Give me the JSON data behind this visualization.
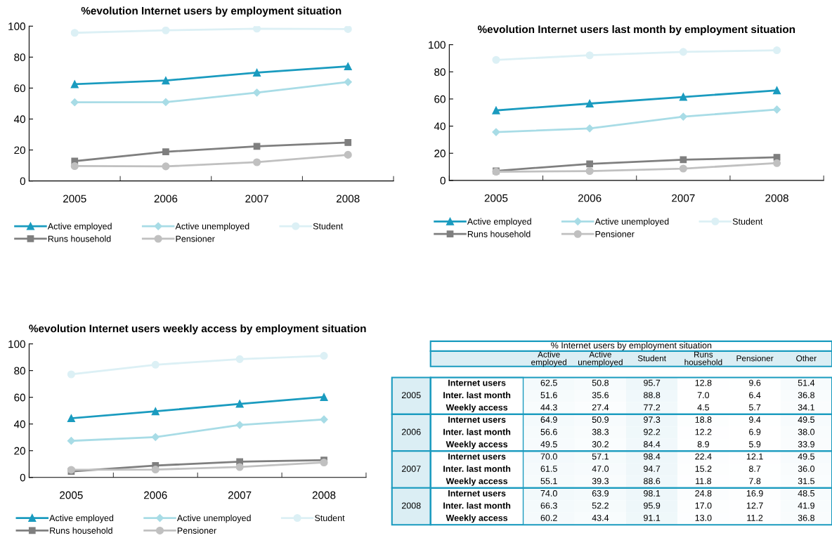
{
  "chart_data": [
    {
      "type": "line",
      "title": "%evolution Internet users by employment situation",
      "categories": [
        "2005",
        "2006",
        "2007",
        "2008"
      ],
      "ylim": [
        0,
        100
      ],
      "yticks": [
        0,
        20,
        40,
        60,
        80,
        100
      ],
      "legend": "bottom",
      "series": [
        {
          "name": "Active employed",
          "color": "#1a9bbf",
          "marker": "triangle",
          "values": [
            62.5,
            64.9,
            70.0,
            74.0
          ]
        },
        {
          "name": "Active unemployed",
          "color": "#a8dce6",
          "marker": "diamond",
          "values": [
            50.8,
            50.9,
            57.1,
            63.9
          ]
        },
        {
          "name": "Student",
          "color": "#dcf0f5",
          "marker": "circle",
          "values": [
            95.7,
            97.3,
            98.4,
            98.1
          ]
        },
        {
          "name": "Runs household",
          "color": "#7f7f7f",
          "marker": "square",
          "values": [
            12.8,
            18.8,
            22.4,
            24.8
          ]
        },
        {
          "name": "Pensioner",
          "color": "#c0c0c0",
          "marker": "circle",
          "values": [
            9.6,
            9.4,
            12.1,
            16.9
          ]
        }
      ]
    },
    {
      "type": "line",
      "title": "%evolution Internet users last month by employment situation",
      "categories": [
        "2005",
        "2006",
        "2007",
        "2008"
      ],
      "ylim": [
        0,
        100
      ],
      "yticks": [
        0,
        20,
        40,
        60,
        80,
        100
      ],
      "legend": "bottom",
      "series": [
        {
          "name": "Active employed",
          "color": "#1a9bbf",
          "marker": "triangle",
          "values": [
            51.6,
            56.6,
            61.5,
            66.3
          ]
        },
        {
          "name": "Active unemployed",
          "color": "#a8dce6",
          "marker": "diamond",
          "values": [
            35.6,
            38.3,
            47.0,
            52.2
          ]
        },
        {
          "name": "Student",
          "color": "#dcf0f5",
          "marker": "circle",
          "values": [
            88.8,
            92.2,
            94.7,
            95.9
          ]
        },
        {
          "name": "Runs household",
          "color": "#7f7f7f",
          "marker": "square",
          "values": [
            7.0,
            12.2,
            15.2,
            17.0
          ]
        },
        {
          "name": "Pensioner",
          "color": "#c0c0c0",
          "marker": "circle",
          "values": [
            6.4,
            6.9,
            8.7,
            12.7
          ]
        }
      ]
    },
    {
      "type": "line",
      "title": "%evolution Internet users weekly access by employment situation",
      "categories": [
        "2005",
        "2006",
        "2007",
        "2008"
      ],
      "ylim": [
        0,
        100
      ],
      "yticks": [
        0,
        20,
        40,
        60,
        80,
        100
      ],
      "legend": "bottom",
      "series": [
        {
          "name": "Active employed",
          "color": "#1a9bbf",
          "marker": "triangle",
          "values": [
            44.3,
            49.5,
            55.1,
            60.2
          ]
        },
        {
          "name": "Active unemployed",
          "color": "#a8dce6",
          "marker": "diamond",
          "values": [
            27.4,
            30.2,
            39.3,
            43.4
          ]
        },
        {
          "name": "Student",
          "color": "#dcf0f5",
          "marker": "circle",
          "values": [
            77.2,
            84.4,
            88.6,
            91.1
          ]
        },
        {
          "name": "Runs household",
          "color": "#7f7f7f",
          "marker": "square",
          "values": [
            4.5,
            8.9,
            11.8,
            13.0
          ]
        },
        {
          "name": "Pensioner",
          "color": "#c0c0c0",
          "marker": "circle",
          "values": [
            5.7,
            5.9,
            7.8,
            11.2
          ]
        }
      ]
    },
    {
      "type": "heatmap",
      "title": "% Internet users by employment situation",
      "data_labels": true,
      "categories": [
        "Active employed",
        "Active unemployed",
        "Student",
        "Runs household",
        "Pensioner",
        "Other"
      ],
      "y_categories": [
        "Internet users",
        "Inter. last month",
        "Weekly access",
        "Internet users",
        "Inter. last month",
        "Weekly access",
        "Internet users",
        "Inter. last month",
        "Weekly access",
        "Internet users",
        "Inter. last month",
        "Weekly access"
      ],
      "y2_categories": [
        null,
        "2005",
        null,
        null,
        "2006",
        null,
        null,
        "2007",
        null,
        null,
        "2008",
        null
      ],
      "cell_labels": [
        [
          "62.5",
          "50.8",
          "95.7",
          "12.8",
          "9.6",
          "51.4"
        ],
        [
          "51.6",
          "35.6",
          "88.8",
          "7.0",
          "6.4",
          "36.8"
        ],
        [
          "44.3",
          "27.4",
          "77.2",
          "4.5",
          "5.7",
          "34.1"
        ],
        [
          "64.9",
          "50.9",
          "97.3",
          "18.8",
          "9.4",
          "49.5"
        ],
        [
          "56.6",
          "38.3",
          "92.2",
          "12.2",
          "6.9",
          "38.0"
        ],
        [
          "49.5",
          "30.2",
          "84.4",
          "8.9",
          "5.9",
          "33.9"
        ],
        [
          "70.0",
          "57.1",
          "98.4",
          "22.4",
          "12.1",
          "49.5"
        ],
        [
          "61.5",
          "47.0",
          "94.7",
          "15.2",
          "8.7",
          "36.0"
        ],
        [
          "55.1",
          "39.3",
          "88.6",
          "11.8",
          "7.8",
          "31.5"
        ],
        [
          "74.0",
          "63.9",
          "98.1",
          "24.8",
          "16.9",
          "48.5"
        ],
        [
          "66.3",
          "52.2",
          "95.9",
          "17.0",
          "12.7",
          "41.9"
        ],
        [
          "60.2",
          "43.4",
          "91.1",
          "13.0",
          "11.2",
          "36.8"
        ]
      ],
      "cells": [
        [
          62.5,
          50.8,
          95.7,
          12.8,
          9.6,
          51.4
        ],
        [
          51.6,
          35.6,
          88.8,
          7.0,
          6.4,
          36.8
        ],
        [
          44.3,
          27.4,
          77.2,
          4.5,
          5.7,
          34.1
        ],
        [
          64.9,
          50.9,
          97.3,
          18.8,
          9.4,
          49.5
        ],
        [
          56.6,
          38.3,
          92.2,
          12.2,
          6.9,
          38.0
        ],
        [
          49.5,
          30.2,
          84.4,
          8.9,
          5.9,
          33.9
        ],
        [
          70.0,
          57.1,
          98.4,
          22.4,
          12.1,
          49.5
        ],
        [
          61.5,
          47.0,
          94.7,
          15.2,
          8.7,
          36.0
        ],
        [
          55.1,
          39.3,
          88.6,
          11.8,
          7.8,
          31.5
        ],
        [
          74.0,
          63.9,
          98.1,
          24.8,
          16.9,
          48.5
        ],
        [
          66.3,
          52.2,
          95.9,
          17.0,
          12.7,
          41.9
        ],
        [
          60.2,
          43.4,
          91.1,
          13.0,
          11.2,
          36.8
        ]
      ]
    }
  ]
}
